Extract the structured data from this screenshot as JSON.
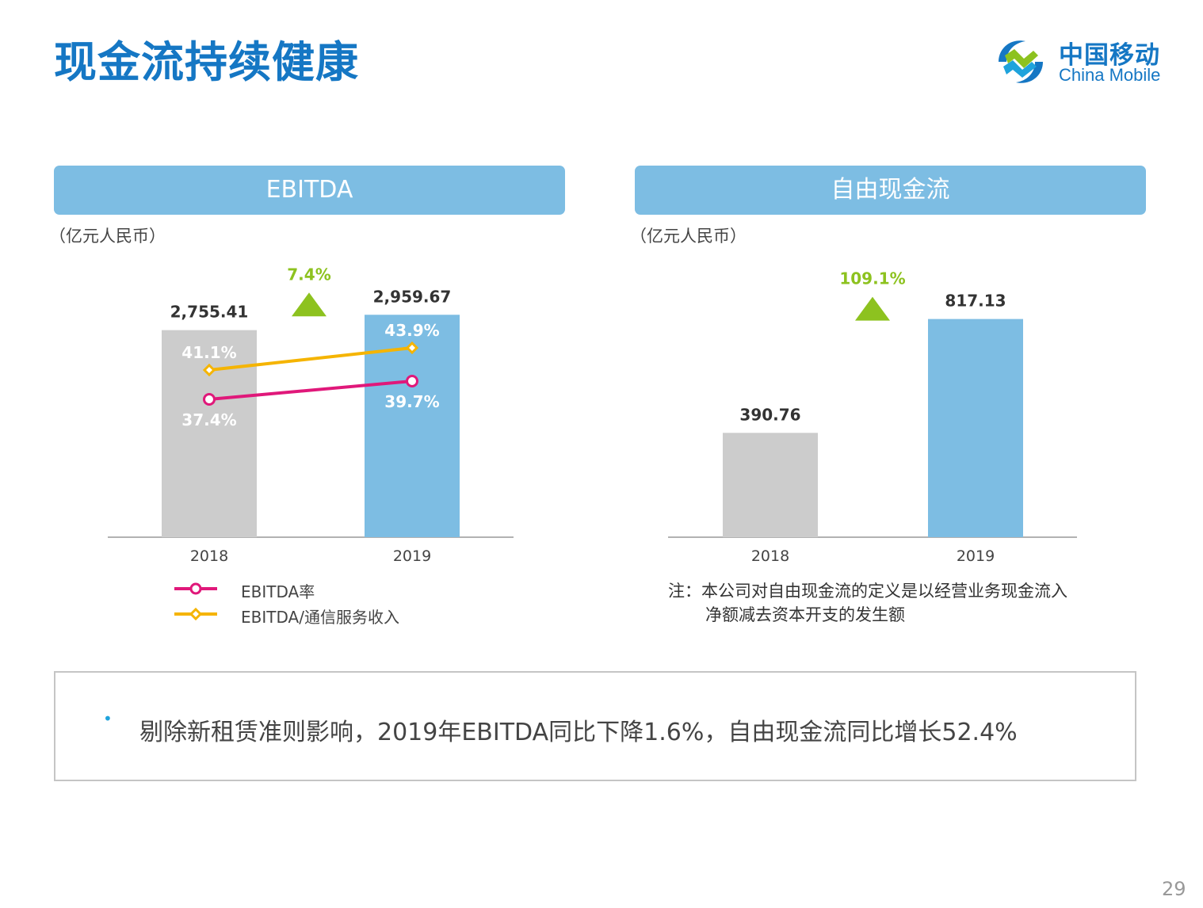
{
  "page": {
    "title": "现金流持续健康",
    "page_number": "29",
    "logo": {
      "cn": "中国移动",
      "en": "China Mobile"
    }
  },
  "left_panel": {
    "header": "EBITDA",
    "unit": "（亿元人民币）",
    "growth_label": "7.4%",
    "legend": [
      {
        "label": "EBITDA率",
        "color": "#e0187a"
      },
      {
        "label": "EBITDA/通信服务收入",
        "color": "#f5b400"
      }
    ]
  },
  "right_panel": {
    "header": "自由现金流",
    "unit": "（亿元人民币）",
    "growth_label": "109.1%",
    "note_line1": "注：本公司对自由现金流的定义是以经营业务现金流入",
    "note_line2": "净额减去资本开支的发生额"
  },
  "summary": {
    "bullet": "•",
    "text": "剔除新租赁准则影响，2019年EBITDA同比下降1.6%，自由现金流同比增长52.4%"
  },
  "colors": {
    "title_blue": "#1577c4",
    "bar_2018": "#cccccc",
    "bar_2019": "#7dbde3",
    "growth_green": "#8dc21f",
    "ebitda_rate": "#e0187a",
    "ebitda_ratio": "#f5b400"
  },
  "chart_data": [
    {
      "type": "bar",
      "categories": [
        "2018",
        "2019"
      ],
      "values": [
        2755.41,
        2959.67
      ],
      "value_labels": [
        "2,755.41",
        "2,959.67"
      ],
      "ylim": [
        0,
        3300
      ],
      "growth": "7.4%",
      "line_series": [
        {
          "name": "EBITDA率",
          "values": [
            37.4,
            39.7
          ],
          "labels": [
            "37.4%",
            "39.7%"
          ],
          "marker": "circle"
        },
        {
          "name": "EBITDA/通信服务收入",
          "values": [
            41.1,
            43.9
          ],
          "labels": [
            "41.1%",
            "43.9%"
          ],
          "marker": "diamond"
        }
      ],
      "line_ylim": [
        20,
        60
      ],
      "legend_position": "bottom-left"
    },
    {
      "type": "bar",
      "categories": [
        "2018",
        "2019"
      ],
      "values": [
        390.76,
        817.13
      ],
      "value_labels": [
        "390.76",
        "817.13"
      ],
      "ylim": [
        0,
        1000
      ],
      "growth": "109.1%"
    }
  ]
}
